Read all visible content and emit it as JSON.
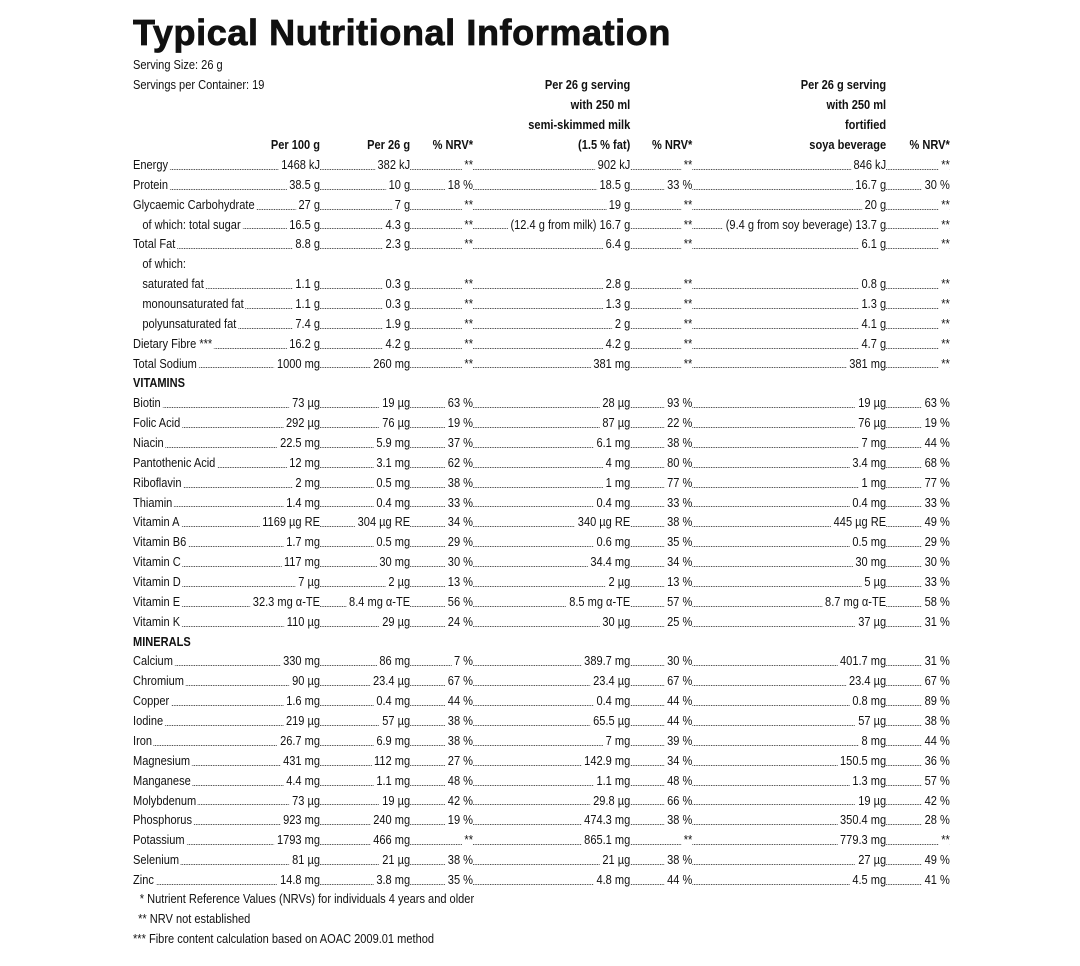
{
  "title": "Typical Nutritional Information",
  "serving_size": "Serving Size: 26 g",
  "servings_per_container": "Servings per Container: 19",
  "columns": {
    "per_100g": "Per 100 g",
    "per_26g": "Per 26 g",
    "nrv": "% NRV*",
    "milk": [
      "Per 26 g serving",
      "with 250 ml",
      "semi-skimmed milk",
      "(1.5 % fat)"
    ],
    "milk_nrv": "% NRV*",
    "soy": [
      "Per 26 g serving",
      "with 250 ml",
      "fortified",
      "soya beverage"
    ],
    "soy_nrv": "% NRV*"
  },
  "rows": [
    {
      "label": "Energy",
      "per_100g": "1468 kJ",
      "per_26g": "382 kJ",
      "nrv": "**",
      "milk": "902 kJ",
      "milk_nrv": "**",
      "soy": "846 kJ",
      "soy_nrv": "**"
    },
    {
      "label": "Protein",
      "per_100g": "38.5 g",
      "per_26g": "10 g",
      "nrv": "18 %",
      "milk": "18.5 g",
      "milk_nrv": "33 %",
      "soy": "16.7 g",
      "soy_nrv": "30 %"
    },
    {
      "label": "Glycaemic Carbohydrate",
      "per_100g": "27 g",
      "per_26g": "7 g",
      "nrv": "**",
      "milk": "19 g",
      "milk_nrv": "**",
      "soy": "20 g",
      "soy_nrv": "**"
    },
    {
      "label": "of which: total sugar",
      "per_100g": "16.5 g",
      "per_26g": "4.3 g",
      "nrv": "**",
      "milk_note": "(12.4 g from milk)",
      "milk": "16.7 g",
      "milk_nrv": "**",
      "soy_note": "(9.4 g from soy beverage)",
      "soy": "13.7 g",
      "soy_nrv": "**"
    },
    {
      "label": "Total Fat",
      "per_100g": "8.8 g",
      "per_26g": "2.3 g",
      "nrv": "**",
      "milk": "6.4 g",
      "milk_nrv": "**",
      "soy": "6.1 g",
      "soy_nrv": "**"
    },
    {
      "label": "of which:"
    },
    {
      "label": "saturated fat",
      "per_100g": "1.1 g",
      "per_26g": "0.3 g",
      "nrv": "**",
      "milk": "2.8 g",
      "milk_nrv": "**",
      "soy": "0.8 g",
      "soy_nrv": "**"
    },
    {
      "label": "monounsaturated fat",
      "per_100g": "1.1 g",
      "per_26g": "0.3 g",
      "nrv": "**",
      "milk": "1.3 g",
      "milk_nrv": "**",
      "soy": "1.3 g",
      "soy_nrv": "**"
    },
    {
      "label": "polyunsaturated fat",
      "per_100g": "7.4 g",
      "per_26g": "1.9 g",
      "nrv": "**",
      "milk": "2 g",
      "milk_nrv": "**",
      "soy": "4.1 g",
      "soy_nrv": "**"
    },
    {
      "label": "Dietary Fibre ***",
      "per_100g": "16.2 g",
      "per_26g": "4.2 g",
      "nrv": "**",
      "milk": "4.2 g",
      "milk_nrv": "**",
      "soy": "4.7 g",
      "soy_nrv": "**"
    },
    {
      "label": "Total Sodium",
      "per_100g": "1000 mg",
      "per_26g": "260 mg",
      "nrv": "**",
      "milk": "381 mg",
      "milk_nrv": "**",
      "soy": "381 mg",
      "soy_nrv": "**"
    },
    {
      "section": "VITAMINS"
    },
    {
      "label": "Biotin",
      "per_100g": "73 µg",
      "per_26g": "19 µg",
      "nrv": "63 %",
      "milk": "28 µg",
      "milk_nrv": "93 %",
      "soy": "19 µg",
      "soy_nrv": "63 %"
    },
    {
      "label": "Folic Acid",
      "per_100g": "292 µg",
      "per_26g": "76 µg",
      "nrv": "19 %",
      "milk": "87 µg",
      "milk_nrv": "22 %",
      "soy": "76 µg",
      "soy_nrv": "19 %"
    },
    {
      "label": "Niacin",
      "per_100g": "22.5 mg",
      "per_26g": "5.9 mg",
      "nrv": "37 %",
      "milk": "6.1 mg",
      "milk_nrv": "38 %",
      "soy": "7 mg",
      "soy_nrv": "44 %"
    },
    {
      "label": "Pantothenic Acid",
      "per_100g": "12 mg",
      "per_26g": "3.1 mg",
      "nrv": "62 %",
      "milk": "4 mg",
      "milk_nrv": "80 %",
      "soy": "3.4 mg",
      "soy_nrv": "68 %"
    },
    {
      "label": "Riboflavin",
      "per_100g": "2 mg",
      "per_26g": "0.5 mg",
      "nrv": "38 %",
      "milk": "1 mg",
      "milk_nrv": "77 %",
      "soy": "1 mg",
      "soy_nrv": "77 %"
    },
    {
      "label": "Thiamin",
      "per_100g": "1.4 mg",
      "per_26g": "0.4 mg",
      "nrv": "33 %",
      "milk": "0.4 mg",
      "milk_nrv": "33 %",
      "soy": "0.4 mg",
      "soy_nrv": "33 %"
    },
    {
      "label": "Vitamin A",
      "per_100g": "1169 µg RE",
      "per_26g": "304 µg RE",
      "nrv": "34 %",
      "milk": "340 µg RE",
      "milk_nrv": "38 %",
      "soy": "445 µg RE",
      "soy_nrv": "49 %"
    },
    {
      "label": "Vitamin B6",
      "per_100g": "1.7 mg",
      "per_26g": "0.5 mg",
      "nrv": "29 %",
      "milk": "0.6 mg",
      "milk_nrv": "35 %",
      "soy": "0.5 mg",
      "soy_nrv": "29 %"
    },
    {
      "label": "Vitamin C",
      "per_100g": "117 mg",
      "per_26g": "30 mg",
      "nrv": "30 %",
      "milk": "34.4 mg",
      "milk_nrv": "34 %",
      "soy": "30 mg",
      "soy_nrv": "30 %"
    },
    {
      "label": "Vitamin D",
      "per_100g": "7 µg",
      "per_26g": "2 µg",
      "nrv": "13 %",
      "milk": "2 µg",
      "milk_nrv": "13 %",
      "soy": "5 µg",
      "soy_nrv": "33 %"
    },
    {
      "label": "Vitamin E",
      "per_100g": "32.3 mg α-TE",
      "per_26g": "8.4 mg α-TE",
      "nrv": "56 %",
      "milk": "8.5 mg α-TE",
      "milk_nrv": "57 %",
      "soy": "8.7 mg α-TE",
      "soy_nrv": "58 %"
    },
    {
      "label": "Vitamin K",
      "per_100g": "110 µg",
      "per_26g": "29 µg",
      "nrv": "24 %",
      "milk": "30 µg",
      "milk_nrv": "25 %",
      "soy": "37 µg",
      "soy_nrv": "31 %"
    },
    {
      "section": "MINERALS"
    },
    {
      "label": "Calcium",
      "per_100g": "330 mg",
      "per_26g": "86 mg",
      "nrv": "7 %",
      "milk": "389.7 mg",
      "milk_nrv": "30 %",
      "soy": "401.7 mg",
      "soy_nrv": "31 %"
    },
    {
      "label": "Chromium",
      "per_100g": "90 µg",
      "per_26g": "23.4 µg",
      "nrv": "67 %",
      "milk": "23.4 µg",
      "milk_nrv": "67 %",
      "soy": "23.4 µg",
      "soy_nrv": "67 %"
    },
    {
      "label": "Copper",
      "per_100g": "1.6 mg",
      "per_26g": "0.4 mg",
      "nrv": "44 %",
      "milk": "0.4 mg",
      "milk_nrv": "44 %",
      "soy": "0.8 mg",
      "soy_nrv": "89 %"
    },
    {
      "label": "Iodine",
      "per_100g": "219 µg",
      "per_26g": "57 µg",
      "nrv": "38 %",
      "milk": "65.5 µg",
      "milk_nrv": "44 %",
      "soy": "57 µg",
      "soy_nrv": "38 %"
    },
    {
      "label": "Iron",
      "per_100g": "26.7 mg",
      "per_26g": "6.9 mg",
      "nrv": "38 %",
      "milk": "7 mg",
      "milk_nrv": "39 %",
      "soy": "8 mg",
      "soy_nrv": "44 %"
    },
    {
      "label": "Magnesium",
      "per_100g": "431 mg",
      "per_26g": "112 mg",
      "nrv": "27 %",
      "milk": "142.9 mg",
      "milk_nrv": "34 %",
      "soy": "150.5 mg",
      "soy_nrv": "36 %"
    },
    {
      "label": "Manganese",
      "per_100g": "4.4 mg",
      "per_26g": "1.1 mg",
      "nrv": "48 %",
      "milk": "1.1 mg",
      "milk_nrv": "48 %",
      "soy": "1.3 mg",
      "soy_nrv": "57 %"
    },
    {
      "label": "Molybdenum",
      "per_100g": "73 µg",
      "per_26g": "19 µg",
      "nrv": "42 %",
      "milk": "29.8 µg",
      "milk_nrv": "66 %",
      "soy": "19 µg",
      "soy_nrv": "42 %"
    },
    {
      "label": "Phosphorus",
      "per_100g": "923 mg",
      "per_26g": "240 mg",
      "nrv": "19 %",
      "milk": "474.3 mg",
      "milk_nrv": "38 %",
      "soy": "350.4 mg",
      "soy_nrv": "28 %"
    },
    {
      "label": "Potassium",
      "per_100g": "1793 mg",
      "per_26g": "466 mg",
      "nrv": "**",
      "milk": "865.1 mg",
      "milk_nrv": "**",
      "soy": "779.3 mg",
      "soy_nrv": "**"
    },
    {
      "label": "Selenium",
      "per_100g": "81 µg",
      "per_26g": "21 µg",
      "nrv": "38 %",
      "milk": "21 µg",
      "milk_nrv": "38 %",
      "soy": "27 µg",
      "soy_nrv": "49 %"
    },
    {
      "label": "Zinc",
      "per_100g": "14.8 mg",
      "per_26g": "3.8 mg",
      "nrv": "35 %",
      "milk": "4.8 mg",
      "milk_nrv": "44 %",
      "soy": "4.5 mg",
      "soy_nrv": "41 %"
    }
  ],
  "footnotes": [
    "* Nutrient Reference Values (NRVs) for individuals 4 years and older",
    "** NRV not established",
    "*** Fibre content calculation based on AOAC 2009.01 method"
  ]
}
